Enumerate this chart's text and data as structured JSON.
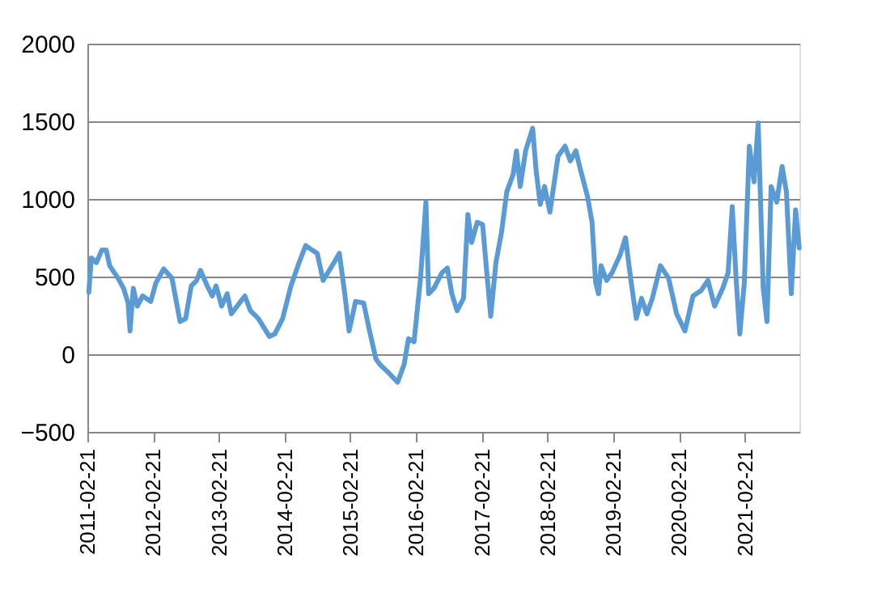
{
  "chart_data": {
    "type": "line",
    "color": "#5b9bd5",
    "line_style": "solid",
    "marker": "none",
    "grid": "y",
    "xlim": [
      "2011-02-21",
      "2021-12-21"
    ],
    "xticks": [
      "2011-02-21",
      "2012-02-21",
      "2013-02-21",
      "2014-02-21",
      "2015-02-21",
      "2016-02-21",
      "2017-02-21",
      "2018-02-21",
      "2019-02-21",
      "2020-02-21",
      "2021-02-21"
    ],
    "ylim": [
      -500,
      2000
    ],
    "yticks": [
      -500,
      0,
      500,
      1000,
      1500,
      2000
    ],
    "x": [
      "2011-03-01",
      "2011-03-15",
      "2011-04-12",
      "2011-05-12",
      "2011-06-06",
      "2011-06-25",
      "2011-08-10",
      "2011-09-10",
      "2011-10-05",
      "2011-10-16",
      "2011-11-03",
      "2011-11-25",
      "2011-12-25",
      "2012-02-08",
      "2012-03-08",
      "2012-04-20",
      "2012-06-05",
      "2012-07-20",
      "2012-08-20",
      "2012-09-20",
      "2012-10-20",
      "2012-11-10",
      "2012-12-18",
      "2013-01-15",
      "2013-02-05",
      "2013-03-08",
      "2013-04-08",
      "2013-05-01",
      "2013-06-15",
      "2013-07-15",
      "2013-08-15",
      "2013-09-28",
      "2013-11-28",
      "2013-12-28",
      "2014-02-10",
      "2014-03-28",
      "2014-05-12",
      "2014-06-18",
      "2014-07-25",
      "2014-08-21",
      "2014-09-23",
      "2014-11-22",
      "2014-12-22",
      "2015-01-21",
      "2015-02-14",
      "2015-03-07",
      "2015-03-22",
      "2015-05-06",
      "2015-06-05",
      "2015-07-13",
      "2015-08-04",
      "2015-09-18",
      "2015-11-11",
      "2015-12-17",
      "2016-01-10",
      "2016-02-10",
      "2016-03-17",
      "2016-04-16",
      "2016-05-01",
      "2016-05-31",
      "2016-07-14",
      "2016-08-13",
      "2016-09-07",
      "2016-10-06",
      "2016-11-11",
      "2016-12-05",
      "2016-12-26",
      "2017-01-26",
      "2017-02-25",
      "2017-03-18",
      "2017-04-11",
      "2017-05-10",
      "2017-06-10",
      "2017-07-09",
      "2017-08-14",
      "2017-09-01",
      "2017-09-22",
      "2017-10-22",
      "2017-11-30",
      "2017-12-20",
      "2018-01-11",
      "2018-02-04",
      "2018-03-06",
      "2018-04-20",
      "2018-05-29",
      "2018-06-27",
      "2018-07-28",
      "2018-08-18",
      "2018-10-01",
      "2018-10-26",
      "2018-11-15",
      "2018-12-01",
      "2018-12-15",
      "2019-01-15",
      "2019-02-14",
      "2019-03-31",
      "2019-04-30",
      "2019-05-30",
      "2019-06-29",
      "2019-07-28",
      "2019-08-27",
      "2019-09-26",
      "2019-11-10",
      "2019-12-25",
      "2020-02-08",
      "2020-03-25",
      "2020-05-09",
      "2020-06-23",
      "2020-07-31",
      "2020-09-06",
      "2020-10-21",
      "2020-11-20",
      "2020-12-13",
      "2021-01-04",
      "2021-01-24",
      "2021-02-18",
      "2021-03-18",
      "2021-04-13",
      "2021-05-06",
      "2021-06-03",
      "2021-06-24",
      "2021-07-17",
      "2021-08-17",
      "2021-09-16",
      "2021-10-10",
      "2021-11-06",
      "2021-11-30",
      "2021-12-20"
    ],
    "values": [
      400,
      620,
      590,
      670,
      670,
      570,
      490,
      425,
      330,
      150,
      425,
      310,
      375,
      340,
      460,
      550,
      490,
      210,
      230,
      440,
      475,
      540,
      440,
      375,
      440,
      310,
      390,
      260,
      330,
      375,
      280,
      230,
      115,
      130,
      230,
      440,
      590,
      700,
      670,
      650,
      475,
      590,
      650,
      390,
      150,
      260,
      340,
      330,
      165,
      -30,
      -65,
      -115,
      -180,
      -65,
      100,
      80,
      490,
      980,
      390,
      425,
      525,
      555,
      390,
      280,
      360,
      900,
      720,
      850,
      835,
      555,
      245,
      590,
      785,
      1045,
      1160,
      1310,
      1080,
      1310,
      1455,
      1175,
      965,
      1080,
      915,
      1275,
      1340,
      1245,
      1310,
      1210,
      1015,
      850,
      460,
      390,
      570,
      475,
      525,
      640,
      750,
      475,
      230,
      360,
      260,
      360,
      570,
      490,
      260,
      150,
      375,
      410,
      475,
      310,
      425,
      525,
      950,
      475,
      130,
      460,
      1340,
      1110,
      1490,
      425,
      210,
      1080,
      980,
      1210,
      1045,
      390,
      930,
      685
    ]
  }
}
